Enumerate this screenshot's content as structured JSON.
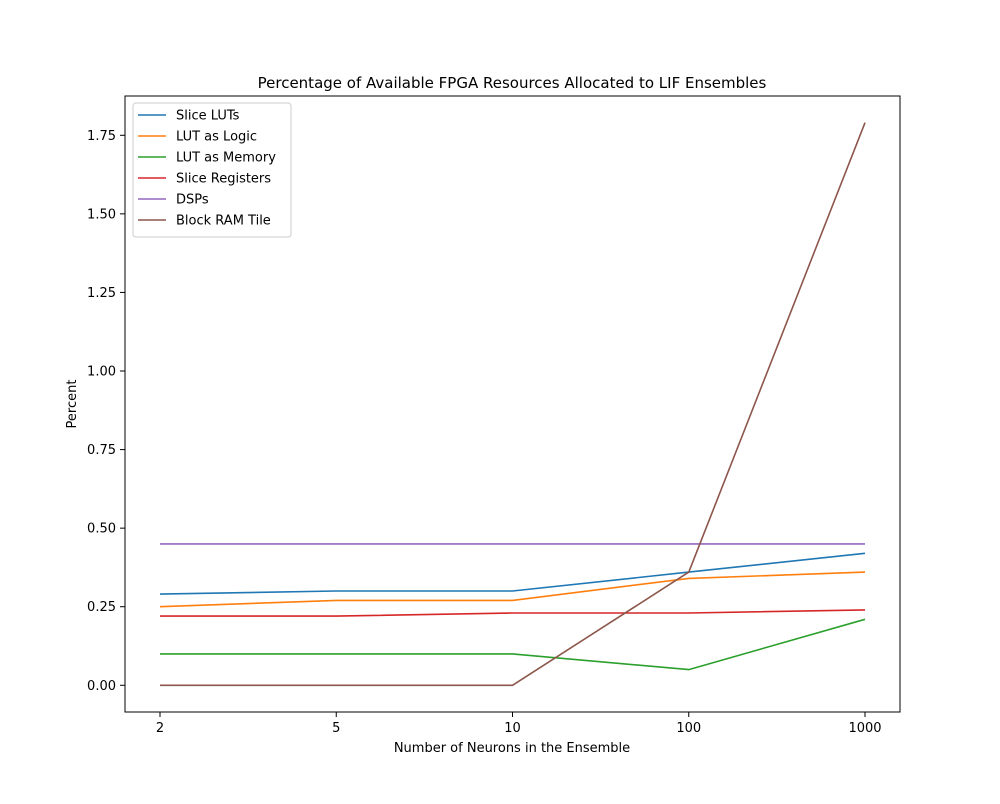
{
  "chart_data": {
    "type": "line",
    "title": "Percentage of Available FPGA Resources Allocated to LIF Ensembles",
    "xlabel": "Number of Neurons in the Ensemble",
    "ylabel": "Percent",
    "x": [
      "2",
      "5",
      "10",
      "100",
      "1000"
    ],
    "ylim": [
      -0.085,
      1.875
    ],
    "yticks": [
      "0.00",
      "0.25",
      "0.50",
      "0.75",
      "1.00",
      "1.25",
      "1.50",
      "1.75"
    ],
    "grid": false,
    "legend_position": "top-left",
    "series": [
      {
        "name": "Slice LUTs",
        "color": "#1f77b4",
        "values": [
          0.29,
          0.3,
          0.3,
          0.36,
          0.42
        ]
      },
      {
        "name": "LUT as Logic",
        "color": "#ff7f0e",
        "values": [
          0.25,
          0.27,
          0.27,
          0.34,
          0.36
        ]
      },
      {
        "name": "LUT as Memory",
        "color": "#2ca02c",
        "values": [
          0.1,
          0.1,
          0.1,
          0.05,
          0.21
        ]
      },
      {
        "name": "Slice Registers",
        "color": "#d62728",
        "values": [
          0.22,
          0.22,
          0.23,
          0.23,
          0.24
        ]
      },
      {
        "name": "DSPs",
        "color": "#9467bd",
        "values": [
          0.45,
          0.45,
          0.45,
          0.45,
          0.45
        ]
      },
      {
        "name": "Block RAM Tile",
        "color": "#8c564b",
        "values": [
          0.0,
          0.0,
          0.0,
          0.36,
          1.79
        ]
      }
    ]
  }
}
